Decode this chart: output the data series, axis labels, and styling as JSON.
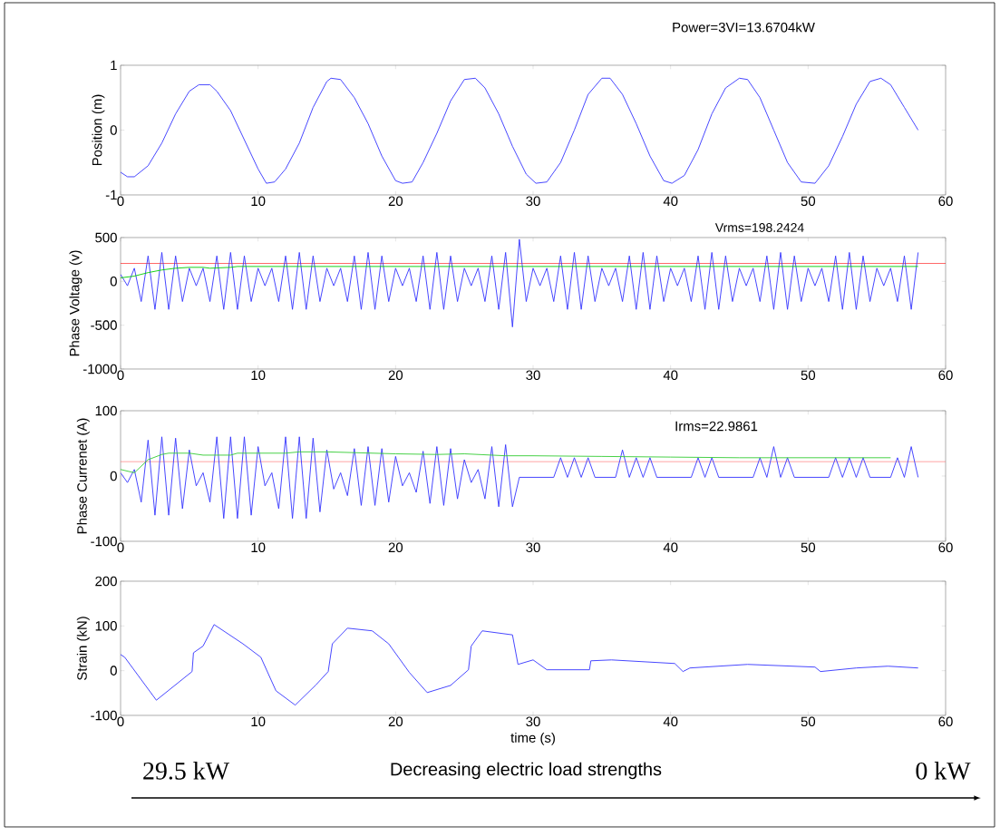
{
  "chart_data": [
    {
      "type": "line",
      "title": "Power=3VI=13.6704kW",
      "ylabel": "Position (m)",
      "xlim": [
        0,
        60
      ],
      "ylim": [
        -1,
        1
      ],
      "xticks": [
        0,
        10,
        20,
        30,
        40,
        50,
        60
      ],
      "yticks": [
        -1,
        0,
        1
      ],
      "series": [
        {
          "color": "#3333ff",
          "x": [
            0,
            0.5,
            1,
            2,
            3,
            4,
            5,
            5.7,
            6.5,
            7,
            8,
            9,
            10,
            10.6,
            11.2,
            12,
            13,
            14,
            15,
            15.3,
            16,
            17,
            18,
            19,
            20,
            20.5,
            21.2,
            22,
            23,
            24,
            25,
            25.8,
            26.5,
            27.5,
            28.5,
            29.5,
            30.2,
            31,
            32,
            33,
            34,
            35,
            35.6,
            36.5,
            37.5,
            38.5,
            39.5,
            40.1,
            41,
            42,
            43,
            44,
            45,
            45.6,
            46.5,
            47.5,
            48.5,
            49.5,
            50.5,
            51.5,
            52.5,
            53.5,
            54.5,
            55.3,
            56,
            57,
            58
          ],
          "values": [
            -0.65,
            -0.72,
            -0.72,
            -0.55,
            -0.2,
            0.25,
            0.6,
            0.7,
            0.7,
            0.6,
            0.3,
            -0.15,
            -0.6,
            -0.82,
            -0.8,
            -0.6,
            -0.2,
            0.35,
            0.75,
            0.8,
            0.78,
            0.5,
            0.1,
            -0.4,
            -0.78,
            -0.82,
            -0.8,
            -0.5,
            -0.05,
            0.45,
            0.78,
            0.8,
            0.65,
            0.25,
            -0.25,
            -0.68,
            -0.82,
            -0.8,
            -0.5,
            0,
            0.55,
            0.8,
            0.8,
            0.55,
            0.1,
            -0.4,
            -0.78,
            -0.82,
            -0.7,
            -0.3,
            0.25,
            0.65,
            0.8,
            0.78,
            0.5,
            0,
            -0.5,
            -0.8,
            -0.82,
            -0.55,
            -0.1,
            0.4,
            0.75,
            0.8,
            0.7,
            0.35,
            0
          ]
        }
      ]
    },
    {
      "type": "line",
      "ylabel": "Phase Voltage (v)",
      "xlim": [
        0,
        60
      ],
      "ylim": [
        -1000,
        500
      ],
      "xticks": [
        0,
        10,
        20,
        30,
        40,
        50,
        60
      ],
      "yticks": [
        -1000,
        -500,
        0,
        500
      ],
      "annotations": [
        "Vrms=198.2424"
      ],
      "ref_lines": [
        {
          "axis": "y",
          "value": 205,
          "color": "#ff0000"
        }
      ],
      "series": [
        {
          "color": "#3333ff",
          "x": [
            0,
            0.5,
            1,
            1.5,
            2,
            2.5,
            3,
            3.5,
            4,
            4.5,
            5,
            5.5,
            6,
            6.5,
            7,
            7.5,
            8,
            8.5,
            9,
            9.5,
            10,
            10.5,
            11,
            11.5,
            12,
            12.5,
            13,
            13.5,
            14,
            14.5,
            15,
            15.5,
            16,
            16.5,
            17,
            17.5,
            18,
            18.5,
            19,
            19.5,
            20,
            20.5,
            21,
            21.5,
            22,
            22.5,
            23,
            23.5,
            24,
            24.5,
            25,
            25.5,
            26,
            26.5,
            27,
            27.5,
            28,
            28.5,
            29,
            29.5,
            30,
            30.5,
            31,
            31.5,
            32,
            32.5,
            33,
            33.5,
            34,
            34.5,
            35,
            35.5,
            36,
            36.5,
            37,
            37.5,
            38,
            38.5,
            39,
            39.5,
            40,
            40.5,
            41,
            41.5,
            42,
            42.5,
            43,
            43.5,
            44,
            44.5,
            45,
            45.5,
            46,
            46.5,
            47,
            47.5,
            48,
            48.5,
            49,
            49.5,
            50,
            50.5,
            51,
            51.5,
            52,
            52.5,
            53,
            53.5,
            54,
            54.5,
            55,
            55.5,
            56,
            56.5,
            57,
            57.5,
            58
          ],
          "values": [
            80,
            -50,
            150,
            -230,
            290,
            -320,
            330,
            -320,
            290,
            -230,
            150,
            -50,
            150,
            -230,
            290,
            -320,
            330,
            -320,
            290,
            -230,
            150,
            -50,
            150,
            -230,
            290,
            -320,
            330,
            -320,
            290,
            -230,
            150,
            -50,
            150,
            -230,
            290,
            -320,
            330,
            -320,
            290,
            -230,
            150,
            -50,
            150,
            -230,
            290,
            -320,
            330,
            -320,
            290,
            -230,
            150,
            -50,
            150,
            -230,
            290,
            -320,
            330,
            -520,
            480,
            -230,
            150,
            -50,
            150,
            -230,
            290,
            -320,
            330,
            -320,
            290,
            -230,
            150,
            -50,
            150,
            -230,
            290,
            -320,
            330,
            -320,
            290,
            -230,
            150,
            -50,
            150,
            -230,
            290,
            -320,
            330,
            -320,
            290,
            -230,
            150,
            -50,
            150,
            -230,
            290,
            -320,
            330,
            -320,
            290,
            -230,
            150,
            -50,
            150,
            -230,
            290,
            -320,
            330,
            -320,
            290,
            -230,
            150,
            -50,
            150,
            -230,
            290,
            -320,
            330
          ]
        },
        {
          "color": "#00cc00",
          "x": [
            0,
            1,
            2,
            3,
            4,
            5,
            6,
            6.5,
            8,
            8.5,
            10,
            12,
            58
          ],
          "values": [
            40,
            60,
            100,
            130,
            150,
            160,
            160,
            150,
            160,
            170,
            170,
            170,
            170
          ]
        }
      ]
    },
    {
      "type": "line",
      "ylabel": "Phase Currenet  (A)",
      "xlim": [
        0,
        60
      ],
      "ylim": [
        -100,
        100
      ],
      "xticks": [
        0,
        10,
        20,
        30,
        40,
        50,
        60
      ],
      "yticks": [
        -100,
        0,
        100
      ],
      "annotations": [
        "Irms=22.9861"
      ],
      "ref_lines": [
        {
          "axis": "y",
          "value": 22,
          "color": "#ff6666"
        }
      ],
      "series": [
        {
          "color": "#3333ff",
          "x": [
            0,
            0.5,
            1,
            1.5,
            2,
            2.5,
            3,
            3.5,
            4,
            4.5,
            5,
            5.5,
            6,
            6.5,
            7,
            7.5,
            8,
            8.5,
            9,
            9.5,
            10,
            10.5,
            11,
            11.5,
            12,
            12.5,
            13,
            13.5,
            14,
            14.5,
            15,
            15.5,
            16,
            16.5,
            17,
            17.5,
            18,
            18.5,
            19,
            19.5,
            20,
            20.5,
            21,
            21.5,
            22,
            22.5,
            23,
            23.5,
            24,
            24.5,
            25,
            25.5,
            26,
            26.5,
            27,
            27.5,
            28,
            28.5,
            29,
            29.5,
            30,
            30.5,
            31,
            31.5,
            32,
            32.5,
            33,
            33.5,
            34,
            34.5,
            35,
            35.5,
            36,
            36.5,
            37,
            37.5,
            38,
            38.5,
            39,
            39.5,
            40,
            40.5,
            41,
            41.5,
            42,
            42.5,
            43,
            43.5,
            44,
            44.5,
            45,
            45.5,
            46,
            46.5,
            47,
            47.5,
            48,
            48.5,
            49,
            49.5,
            50,
            50.5,
            51,
            51.5,
            52,
            52.5,
            53,
            53.5,
            54,
            54.5,
            55,
            55.5,
            56,
            56.5,
            57,
            57.5,
            58
          ],
          "values": [
            5,
            -10,
            10,
            -40,
            55,
            -60,
            60,
            -60,
            58,
            -50,
            40,
            -15,
            5,
            -40,
            60,
            -65,
            60,
            -65,
            60,
            -60,
            45,
            -15,
            5,
            -50,
            60,
            -65,
            60,
            -65,
            58,
            -55,
            40,
            -20,
            5,
            -30,
            42,
            -45,
            45,
            -45,
            42,
            -40,
            30,
            -15,
            5,
            -25,
            38,
            -42,
            45,
            -45,
            42,
            -35,
            25,
            -10,
            10,
            -35,
            45,
            -47,
            48,
            -47,
            -2,
            -2,
            -2,
            -2,
            -2,
            -2,
            28,
            -2,
            28,
            -2,
            28,
            -2,
            -2,
            -2,
            -2,
            40,
            -2,
            28,
            -2,
            28,
            -2,
            -2,
            -2,
            -2,
            -2,
            -2,
            28,
            -2,
            28,
            -2,
            -2,
            -2,
            -2,
            -2,
            -2,
            28,
            -2,
            45,
            -2,
            28,
            -2,
            -2,
            -2,
            -2,
            -2,
            -2,
            28,
            -2,
            28,
            -2,
            28,
            -2,
            -2,
            -2,
            -2,
            28,
            -2,
            45,
            -2
          ]
        },
        {
          "color": "#33cc33",
          "x": [
            0,
            1,
            2,
            3,
            3.5,
            5,
            6,
            8,
            8.5,
            10,
            12,
            13,
            15,
            20,
            23,
            25,
            28,
            30,
            35,
            40,
            45,
            50,
            56
          ],
          "values": [
            10,
            5,
            25,
            33,
            35,
            35,
            32,
            32,
            35,
            35,
            35,
            37,
            37,
            34,
            33,
            34,
            31,
            31,
            30,
            29,
            28,
            28,
            28
          ]
        }
      ]
    },
    {
      "type": "line",
      "xlabel": "time (s)",
      "ylabel": "Strain (kN)",
      "xlim": [
        0,
        60
      ],
      "ylim": [
        -100,
        200
      ],
      "xticks": [
        0,
        10,
        20,
        30,
        40,
        50,
        60
      ],
      "yticks": [
        -100,
        0,
        100,
        200
      ],
      "annotations": [
        "29.5 kW",
        "Decreasing electric load strengths",
        "0 kW"
      ],
      "series": [
        {
          "color": "#3333ff",
          "x": [
            0,
            0.3,
            2.6,
            5.2,
            5.3,
            6,
            6.8,
            8.9,
            10.2,
            11.3,
            12.7,
            14.2,
            15.1,
            15.4,
            16.5,
            18.3,
            19.5,
            21,
            22.3,
            24,
            25.3,
            25.5,
            26.3,
            28.5,
            28.9,
            30,
            31,
            34.1,
            34.2,
            35.7,
            40.3,
            40.9,
            41.4,
            45.6,
            50.5,
            50.9,
            53.5,
            55.8,
            58
          ],
          "values": [
            36,
            30,
            -66,
            -2,
            40,
            55,
            103,
            60,
            30,
            -45,
            -77,
            -32,
            -2,
            60,
            95,
            89,
            60,
            -4,
            -49,
            -33,
            2,
            55,
            89,
            80,
            14,
            24,
            2,
            2,
            22,
            24,
            16,
            -2,
            6,
            14,
            8,
            -2,
            6,
            10,
            6
          ]
        }
      ]
    }
  ]
}
